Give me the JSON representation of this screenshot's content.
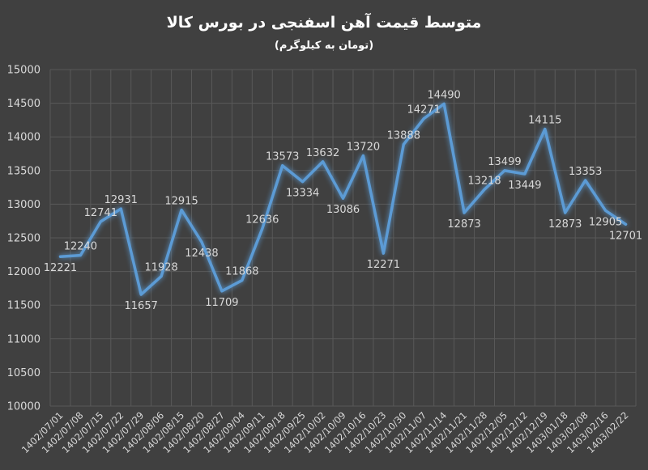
{
  "chart_data": {
    "type": "line",
    "title": "متوسط قیمت آهن اسفنجی در بورس کالا",
    "subtitle": "(تومان به کیلوگرم)",
    "xlabel": "",
    "ylabel": "",
    "ylim": [
      10000,
      15000
    ],
    "yticks": [
      10000,
      10500,
      11000,
      11500,
      12000,
      12500,
      13000,
      13500,
      14000,
      14500,
      15000
    ],
    "grid": true,
    "legend": "none",
    "categories": [
      "1402/07/01",
      "1402/07/08",
      "1402/07/15",
      "1402/07/22",
      "1402/07/29",
      "1402/08/06",
      "1402/08/15",
      "1402/08/20",
      "1402/08/27",
      "1402/09/04",
      "1402/09/11",
      "1402/09/18",
      "1402/09/25",
      "1402/10/02",
      "1402/10/09",
      "1402/10/16",
      "1402/10/23",
      "1402/10/30",
      "1402/11/07",
      "1402/11/14",
      "1402/11/21",
      "1402/11/28",
      "1402/12/05",
      "1402/12/12",
      "1402/12/19",
      "1403/01/18",
      "1403/02/08",
      "1403/02/16",
      "1403/02/22"
    ],
    "series": [
      {
        "values": [
          12221,
          12240,
          12741,
          12931,
          11657,
          11928,
          12915,
          12438,
          11709,
          11868,
          12636,
          13573,
          13334,
          13632,
          13086,
          13720,
          12271,
          13888,
          14271,
          14490,
          12873,
          13218,
          13499,
          13449,
          14115,
          12873,
          13353,
          12905,
          12701
        ],
        "color": "#5b9bd5"
      }
    ],
    "colors": {
      "background": "#404040",
      "grid": "#595959",
      "text": "#d9d9d9",
      "title": "#ffffff"
    }
  }
}
